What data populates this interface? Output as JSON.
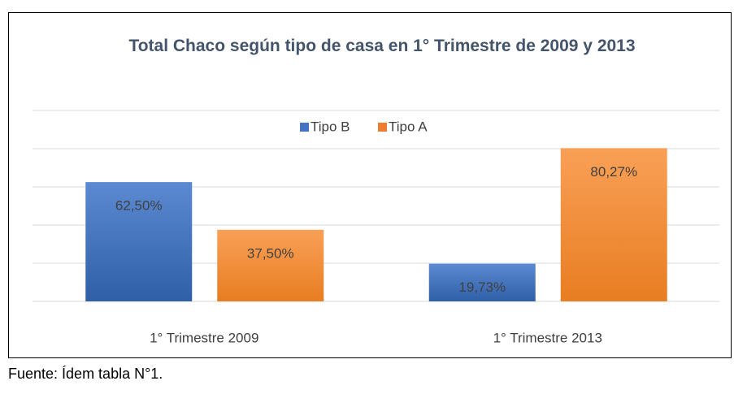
{
  "chart_data": {
    "type": "bar",
    "title": "Total Chaco según tipo de casa en  1° Trimestre de 2009 y 2013",
    "categories": [
      "1° Trimestre 2009",
      "1° Trimestre 2013"
    ],
    "series": [
      {
        "name": "Tipo B",
        "color": "#4472c4",
        "values": [
          62.5,
          19.73
        ],
        "value_labels": [
          "62,50%",
          "19,73%"
        ]
      },
      {
        "name": "Tipo A",
        "color": "#ed7d31",
        "values": [
          37.5,
          80.27
        ],
        "value_labels": [
          "37,50%",
          "80,27%"
        ]
      }
    ],
    "ylim": [
      0,
      100
    ],
    "yticks": [
      0,
      20,
      40,
      60,
      80,
      100
    ],
    "grid": true,
    "legend": "top"
  },
  "footnote": "Fuente: Ídem tabla N°1."
}
